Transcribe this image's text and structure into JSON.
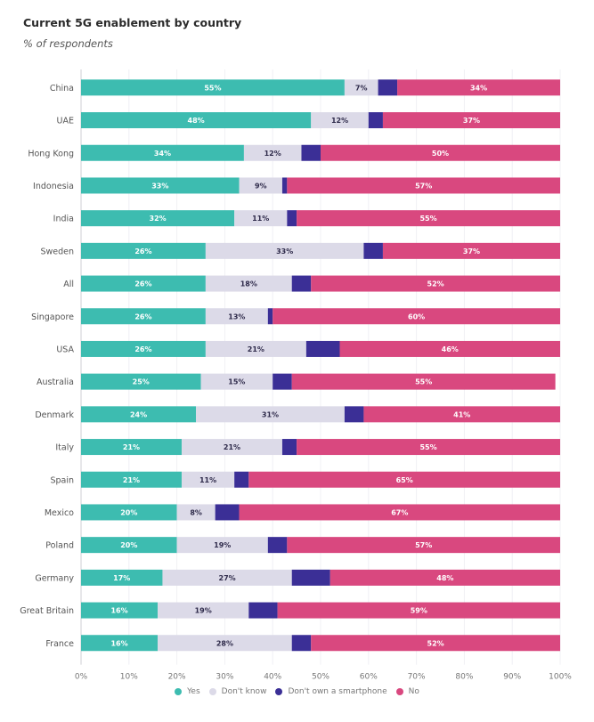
{
  "chart_data": {
    "type": "bar",
    "orientation": "horizontal",
    "stacked": true,
    "title": "Current 5G enablement by country",
    "subtitle": "% of respondents",
    "xlabel": "",
    "ylabel": "",
    "xlim": [
      0,
      100
    ],
    "x_ticks": [
      "0%",
      "10%",
      "20%",
      "30%",
      "40%",
      "50%",
      "60%",
      "70%",
      "80%",
      "90%",
      "100%"
    ],
    "grid": true,
    "legend_position": "bottom",
    "categories": [
      "China",
      "UAE",
      "Hong Kong",
      "Indonesia",
      "India",
      "Sweden",
      "All",
      "Singapore",
      "USA",
      "Australia",
      "Denmark",
      "Italy",
      "Spain",
      "Mexico",
      "Poland",
      "Germany",
      "Great Britain",
      "France"
    ],
    "series": [
      {
        "name": "Yes",
        "color": "#3dbcb0",
        "label_color": "#ffffff",
        "values": [
          55,
          48,
          34,
          33,
          32,
          26,
          26,
          26,
          26,
          25,
          24,
          21,
          21,
          20,
          20,
          17,
          16,
          16
        ],
        "labeled": true
      },
      {
        "name": "Don't know",
        "color": "#dcdae8",
        "label_color": "#2e2a4a",
        "values": [
          7,
          12,
          12,
          9,
          11,
          33,
          18,
          13,
          21,
          15,
          31,
          21,
          11,
          8,
          19,
          27,
          19,
          28
        ],
        "labeled": true
      },
      {
        "name": "Don't own a smartphone",
        "color": "#3b2f96",
        "label_color": "#ffffff",
        "values": [
          4,
          3,
          4,
          1,
          2,
          4,
          4,
          1,
          7,
          4,
          4,
          3,
          3,
          5,
          4,
          8,
          6,
          4
        ],
        "labeled": false
      },
      {
        "name": "No",
        "color": "#d9487f",
        "label_color": "#ffffff",
        "values": [
          34,
          37,
          50,
          57,
          55,
          37,
          52,
          60,
          46,
          55,
          41,
          55,
          65,
          67,
          57,
          48,
          59,
          52
        ],
        "labeled": true
      }
    ]
  }
}
